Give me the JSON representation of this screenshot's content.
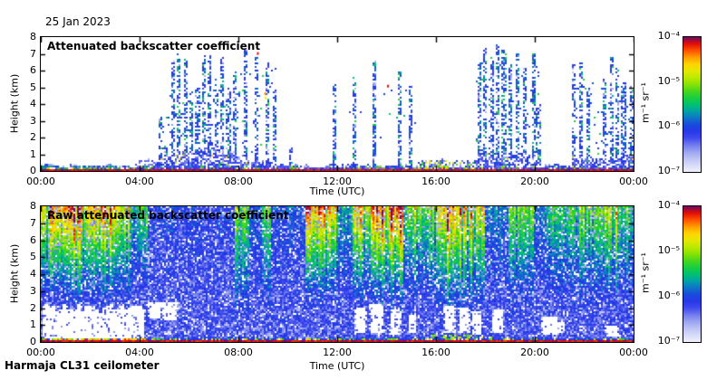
{
  "labels": {
    "date": "25 Jan 2023",
    "instrument": "Harmaja CL31 ceilometer"
  },
  "palette": {
    "stops": [
      [
        0.0,
        "#ffffff"
      ],
      [
        0.06,
        "#f0f0fb"
      ],
      [
        0.14,
        "#c6ccf5"
      ],
      [
        0.22,
        "#8e97ee"
      ],
      [
        0.3,
        "#3c46ee"
      ],
      [
        0.36,
        "#1e32e6"
      ],
      [
        0.42,
        "#1464d2"
      ],
      [
        0.48,
        "#00a0aa"
      ],
      [
        0.54,
        "#00c864"
      ],
      [
        0.6,
        "#28d228"
      ],
      [
        0.68,
        "#96e400"
      ],
      [
        0.74,
        "#d2ec00"
      ],
      [
        0.8,
        "#ffe100"
      ],
      [
        0.86,
        "#ff9b00"
      ],
      [
        0.91,
        "#ff4b00"
      ],
      [
        0.95,
        "#e60f00"
      ],
      [
        0.98,
        "#b4003c"
      ],
      [
        1.0,
        "#6e0a64"
      ]
    ],
    "axis_color": "#000000",
    "background": "#ffffff"
  },
  "chart_data": [
    {
      "type": "heatmap",
      "kind": "attenuated",
      "title": "Attenuated backscatter coefficient",
      "xlabel": "Time (UTC)",
      "ylabel": "Height (km)",
      "x_range_hours": [
        0,
        24
      ],
      "y_range_km": [
        0,
        8
      ],
      "xticks": [
        "00:00",
        "04:00",
        "08:00",
        "12:00",
        "16:00",
        "20:00",
        "00:00"
      ],
      "yticks": [
        "0",
        "1",
        "2",
        "3",
        "4",
        "5",
        "6",
        "7",
        "8"
      ],
      "colorbar": {
        "ticks": [
          "10⁻⁴",
          "10⁻⁵",
          "10⁻⁶",
          "10⁻⁷"
        ],
        "unit": "m⁻¹ sr⁻¹",
        "scale": "log",
        "range": [
          "1e-7",
          "1e-4"
        ]
      },
      "surface_layer": {
        "base_km": 0.26,
        "thick_until_h": 3.6,
        "note": "red-orange aerosol speckle near ground, strongest 00:00-03:30"
      },
      "hazes": [
        {
          "t0": 3.8,
          "t1": 9.5,
          "base": 0.45,
          "amp": 0.75,
          "ctr": 6.7,
          "sig": 1.5,
          "dens": 0.6,
          "green_mix": 0.08
        },
        {
          "t0": 9.5,
          "t1": 15.25,
          "base": 0.25,
          "amp": 0,
          "ctr": 0,
          "sig": 1,
          "dens": 0.3,
          "green_mix": 0.05
        },
        {
          "t0": 15.25,
          "t1": 17.7,
          "base": 0.5,
          "amp": 0,
          "ctr": 0,
          "sig": 1,
          "dens": 0.55,
          "green_mix": 0.32
        },
        {
          "t0": 17.7,
          "t1": 20.1,
          "base": 0.9,
          "amp": 0,
          "ctr": 0,
          "sig": 1,
          "dens": 0.5,
          "green_mix": 0.08
        },
        {
          "t0": 20.1,
          "t1": 21.5,
          "base": 0.3,
          "amp": 0,
          "ctr": 0,
          "sig": 1,
          "dens": 0.4,
          "green_mix": 0.06
        },
        {
          "t0": 21.5,
          "t1": 24.0,
          "base": 0.75,
          "amp": 0,
          "ctr": 0,
          "sig": 1,
          "dens": 0.55,
          "green_mix": 0.08
        }
      ],
      "streaks": [
        {
          "t": 4.85,
          "top": 3.2
        },
        {
          "t": 5.05,
          "top": 1.4
        },
        {
          "t": 5.35,
          "top": 6.6
        },
        {
          "t": 5.6,
          "top": 7.0
        },
        {
          "t": 5.85,
          "top": 6.8
        },
        {
          "t": 6.1,
          "top": 4.3
        },
        {
          "t": 6.35,
          "top": 5.0
        },
        {
          "t": 6.6,
          "top": 6.9
        },
        {
          "t": 6.85,
          "top": 7.0
        },
        {
          "t": 7.1,
          "top": 5.5
        },
        {
          "t": 7.35,
          "top": 7.0
        },
        {
          "t": 7.6,
          "top": 4.8
        },
        {
          "t": 7.85,
          "top": 6.0
        },
        {
          "t": 8.3,
          "top": 7.3
        },
        {
          "t": 8.75,
          "top": 6.8
        },
        {
          "t": 9.2,
          "top": 6.5
        },
        {
          "t": 9.45,
          "top": 5.0
        },
        {
          "t": 10.15,
          "top": 1.5
        },
        {
          "t": 11.9,
          "top": 5.3
        },
        {
          "t": 12.7,
          "top": 5.6
        },
        {
          "t": 13.5,
          "top": 6.6
        },
        {
          "t": 14.55,
          "top": 6.0
        },
        {
          "t": 15.0,
          "top": 5.2
        },
        {
          "t": 17.75,
          "top": 6.5
        },
        {
          "t": 18.0,
          "top": 7.3
        },
        {
          "t": 18.25,
          "top": 6.8
        },
        {
          "t": 18.5,
          "top": 7.6
        },
        {
          "t": 18.75,
          "top": 7.2
        },
        {
          "t": 19.0,
          "top": 6.4
        },
        {
          "t": 19.3,
          "top": 7.0
        },
        {
          "t": 19.6,
          "top": 6.2
        },
        {
          "t": 19.95,
          "top": 7.0
        },
        {
          "t": 20.15,
          "top": 4.0
        },
        {
          "t": 21.6,
          "top": 6.4
        },
        {
          "t": 21.9,
          "top": 6.6
        },
        {
          "t": 22.15,
          "top": 5.0
        },
        {
          "t": 22.8,
          "top": 5.5
        },
        {
          "t": 23.1,
          "top": 6.8
        },
        {
          "t": 23.35,
          "top": 6.2
        },
        {
          "t": 23.6,
          "top": 5.4
        },
        {
          "t": 23.92,
          "top": 5.2
        }
      ],
      "dot_boxes": [
        {
          "t0": 4.8,
          "t1": 8.1,
          "h0": 1,
          "h1": 5.0,
          "p": 0.05
        },
        {
          "t0": 8.1,
          "t1": 9.6,
          "h0": 1,
          "h1": 6.5,
          "p": 0.03
        },
        {
          "t0": 17.6,
          "t1": 20.2,
          "h0": 1,
          "h1": 6.5,
          "p": 0.05
        },
        {
          "t0": 21.5,
          "t1": 23.95,
          "h0": 1,
          "h1": 5.5,
          "p": 0.04
        },
        {
          "t0": 12.5,
          "t1": 15.2,
          "h0": 2,
          "h1": 5.0,
          "p": 0.015
        }
      ],
      "specks": [
        {
          "t": 8.75,
          "h": 7.1,
          "v": 0.95
        },
        {
          "t": 9.05,
          "h": 4.7,
          "v": 0.87
        },
        {
          "t": 9.07,
          "h": 4.45,
          "v": 0.8
        },
        {
          "t": 14.02,
          "h": 5.15,
          "v": 0.95
        }
      ]
    },
    {
      "type": "heatmap",
      "kind": "raw",
      "title": "Raw attenuated backscatter coefficient",
      "xlabel": "Time (UTC)",
      "ylabel": "Height (km)",
      "x_range_hours": [
        0,
        24
      ],
      "y_range_km": [
        0,
        8
      ],
      "xticks": [
        "00:00",
        "04:00",
        "08:00",
        "12:00",
        "16:00",
        "20:00",
        "00:00"
      ],
      "yticks": [
        "0",
        "1",
        "2",
        "3",
        "4",
        "5",
        "6",
        "7",
        "8"
      ],
      "colorbar": {
        "ticks": [
          "10⁻⁴",
          "10⁻⁵",
          "10⁻⁶",
          "10⁻⁷"
        ],
        "unit": "m⁻¹ sr⁻¹",
        "scale": "log",
        "range": [
          "1e-7",
          "1e-4"
        ]
      },
      "noise_bands": [
        {
          "t0": 0.0,
          "t1": 1.1,
          "s": 0.95,
          "h0": 2.0
        },
        {
          "t0": 1.1,
          "t1": 2.3,
          "s": 1.0,
          "h0": 2.0
        },
        {
          "t0": 2.3,
          "t1": 3.7,
          "s": 0.85,
          "h0": 2.2
        },
        {
          "t0": 3.7,
          "t1": 4.35,
          "s": 0.5,
          "h0": 2.5
        },
        {
          "t0": 4.35,
          "t1": 7.85,
          "s": 0.1,
          "h0": 3.0
        },
        {
          "t0": 7.85,
          "t1": 8.45,
          "s": 0.6,
          "h0": 0.9
        },
        {
          "t0": 8.45,
          "t1": 8.95,
          "s": 0.18,
          "h0": 2.5
        },
        {
          "t0": 8.95,
          "t1": 9.35,
          "s": 0.55,
          "h0": 1.0
        },
        {
          "t0": 9.35,
          "t1": 10.75,
          "s": 0.15,
          "h0": 2.5
        },
        {
          "t0": 10.75,
          "t1": 12.05,
          "s": 1.0,
          "h0": 1.8
        },
        {
          "t0": 12.05,
          "t1": 12.55,
          "s": 0.3,
          "h0": 2.5
        },
        {
          "t0": 12.55,
          "t1": 13.35,
          "s": 0.75,
          "h0": 2.0
        },
        {
          "t0": 13.35,
          "t1": 14.7,
          "s": 1.0,
          "h0": 1.8
        },
        {
          "t0": 14.7,
          "t1": 16.0,
          "s": 0.6,
          "h0": 2.2
        },
        {
          "t0": 16.0,
          "t1": 17.05,
          "s": 0.95,
          "h0": 1.2
        },
        {
          "t0": 17.05,
          "t1": 17.95,
          "s": 0.85,
          "h0": 1.5
        },
        {
          "t0": 17.95,
          "t1": 18.95,
          "s": 0.25,
          "h0": 2.5
        },
        {
          "t0": 18.95,
          "t1": 20.0,
          "s": 0.6,
          "h0": 1.5
        },
        {
          "t0": 20.0,
          "t1": 20.45,
          "s": 0.2,
          "h0": 2.5
        },
        {
          "t0": 20.45,
          "t1": 21.35,
          "s": 0.45,
          "h0": 2.0
        },
        {
          "t0": 21.35,
          "t1": 21.95,
          "s": 0.5,
          "h0": 2.0
        },
        {
          "t0": 21.95,
          "t1": 23.35,
          "s": 0.7,
          "h0": 1.8
        },
        {
          "t0": 23.35,
          "t1": 24.0,
          "s": 0.45,
          "h0": 2.0
        }
      ],
      "low_white_zone": {
        "t0": 0.1,
        "t1": 4.15,
        "h_bottom": 0.22,
        "h_top_base": 1.75,
        "h_top_noise": 0.5
      },
      "holes": [
        {
          "t": 4.6,
          "h0": 1.4,
          "h1": 2.4,
          "w": 0.25
        },
        {
          "t": 5.2,
          "h0": 1.3,
          "h1": 2.3,
          "w": 0.3
        },
        {
          "t": 12.95,
          "h0": 0.5,
          "h1": 2.0,
          "w": 0.22
        },
        {
          "t": 13.6,
          "h0": 0.5,
          "h1": 2.2,
          "w": 0.25
        },
        {
          "t": 14.35,
          "h0": 0.4,
          "h1": 1.9,
          "w": 0.2
        },
        {
          "t": 15.05,
          "h0": 0.5,
          "h1": 1.6,
          "w": 0.15
        },
        {
          "t": 16.55,
          "h0": 0.5,
          "h1": 2.1,
          "w": 0.22
        },
        {
          "t": 17.15,
          "h0": 0.5,
          "h1": 2.0,
          "w": 0.2
        },
        {
          "t": 17.65,
          "h0": 0.4,
          "h1": 1.8,
          "w": 0.18
        },
        {
          "t": 18.5,
          "h0": 0.5,
          "h1": 1.9,
          "w": 0.22
        },
        {
          "t": 20.6,
          "h0": 0.4,
          "h1": 1.5,
          "w": 0.3
        },
        {
          "t": 21.0,
          "h0": 0.5,
          "h1": 1.2,
          "w": 0.2
        },
        {
          "t": 23.1,
          "h0": 0.3,
          "h1": 1.0,
          "w": 0.25
        }
      ],
      "green_surface_band": {
        "t0": 15.8,
        "t1": 18.3,
        "h_top": 0.4
      }
    }
  ]
}
